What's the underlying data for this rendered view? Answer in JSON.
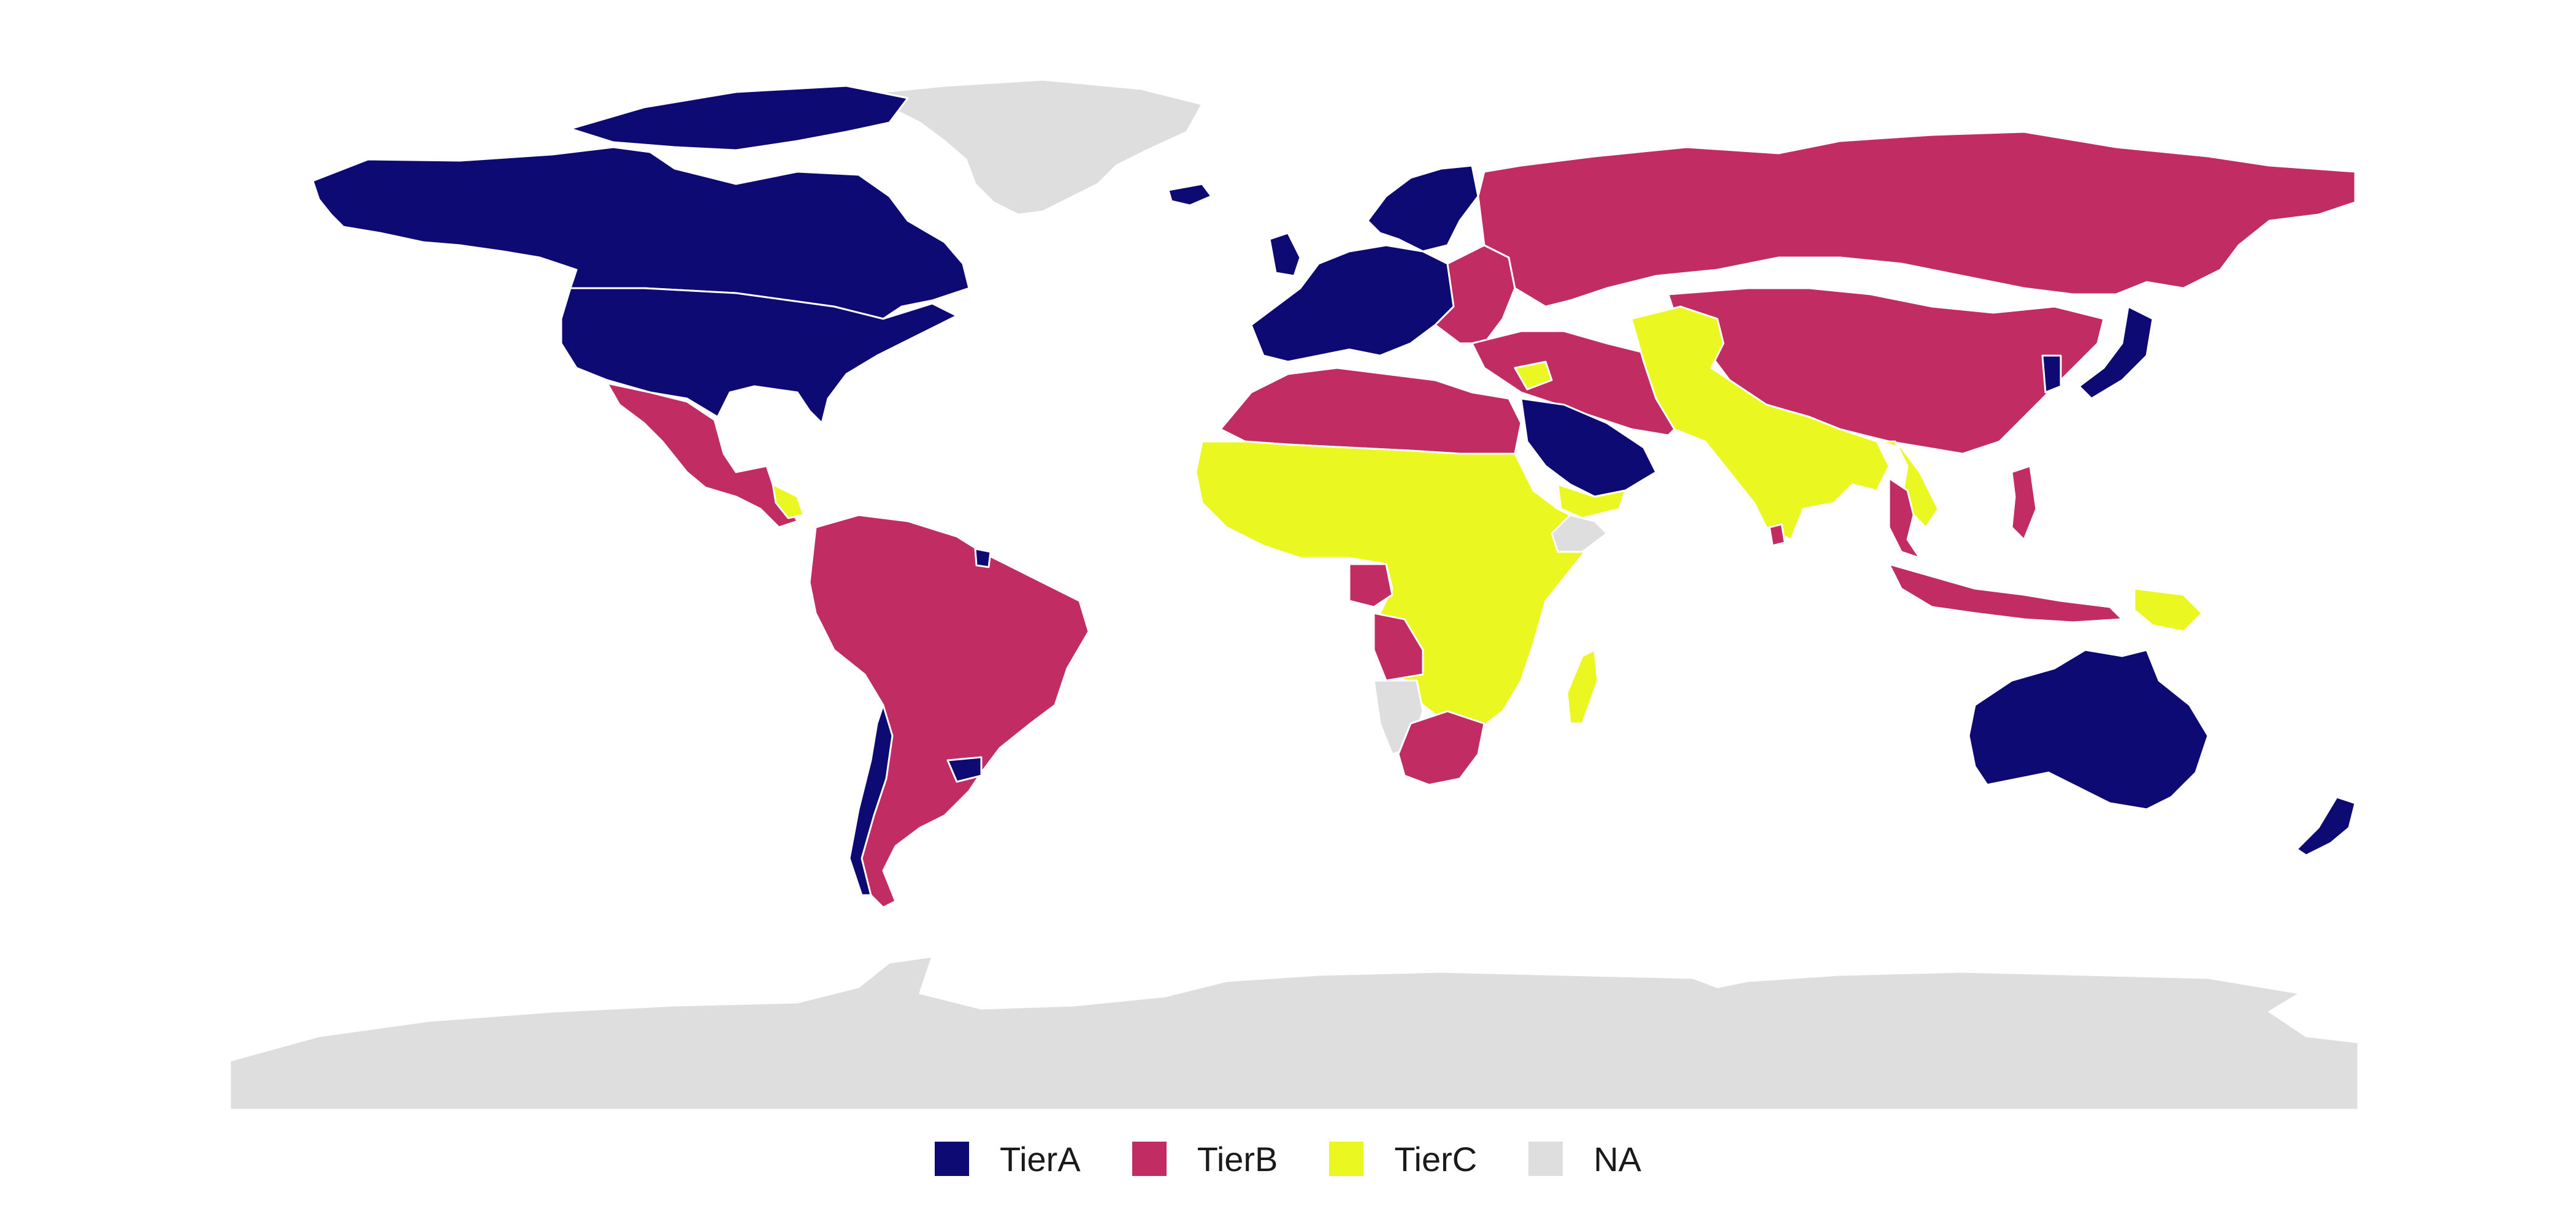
{
  "legend": {
    "items": [
      {
        "label": "TierA",
        "color": "#0d0a73"
      },
      {
        "label": "TierB",
        "color": "#c12c62"
      },
      {
        "label": "TierC",
        "color": "#ebf720"
      },
      {
        "label": "NA",
        "color": "#dedede"
      }
    ]
  },
  "map": {
    "projection": "equirectangular",
    "tiers": {
      "TierA": [
        "Canada",
        "United States",
        "Greenland-west-islands",
        "Western Europe",
        "Scandinavia",
        "Saudi Arabia",
        "Oman",
        "UAE",
        "Japan",
        "South Korea",
        "Australia",
        "New Zealand",
        "Chile",
        "Uruguay",
        "French Guiana",
        "Iceland"
      ],
      "TierB": [
        "Russia",
        "China",
        "Mexico",
        "Central America",
        "Brazil",
        "Argentina",
        "Peru",
        "Colombia",
        "Venezuela",
        "Bolivia",
        "North Africa",
        "Egypt",
        "Turkey",
        "Iran",
        "Kazakhstan",
        "Mongolia",
        "Southeast Asia",
        "Indonesia",
        "Angola",
        "Gabon",
        "South Africa",
        "Eastern Europe",
        "Sri Lanka",
        "Philippines"
      ],
      "TierC": [
        "Sub-Saharan Africa",
        "India",
        "Pakistan",
        "Afghanistan",
        "Central Asia",
        "Yemen",
        "Madagascar",
        "Myanmar",
        "Vietnam",
        "Papua New Guinea",
        "Syria",
        "Bhutan"
      ],
      "NA": [
        "Greenland",
        "Antarctica",
        "Namibia",
        "Somalia"
      ]
    }
  }
}
